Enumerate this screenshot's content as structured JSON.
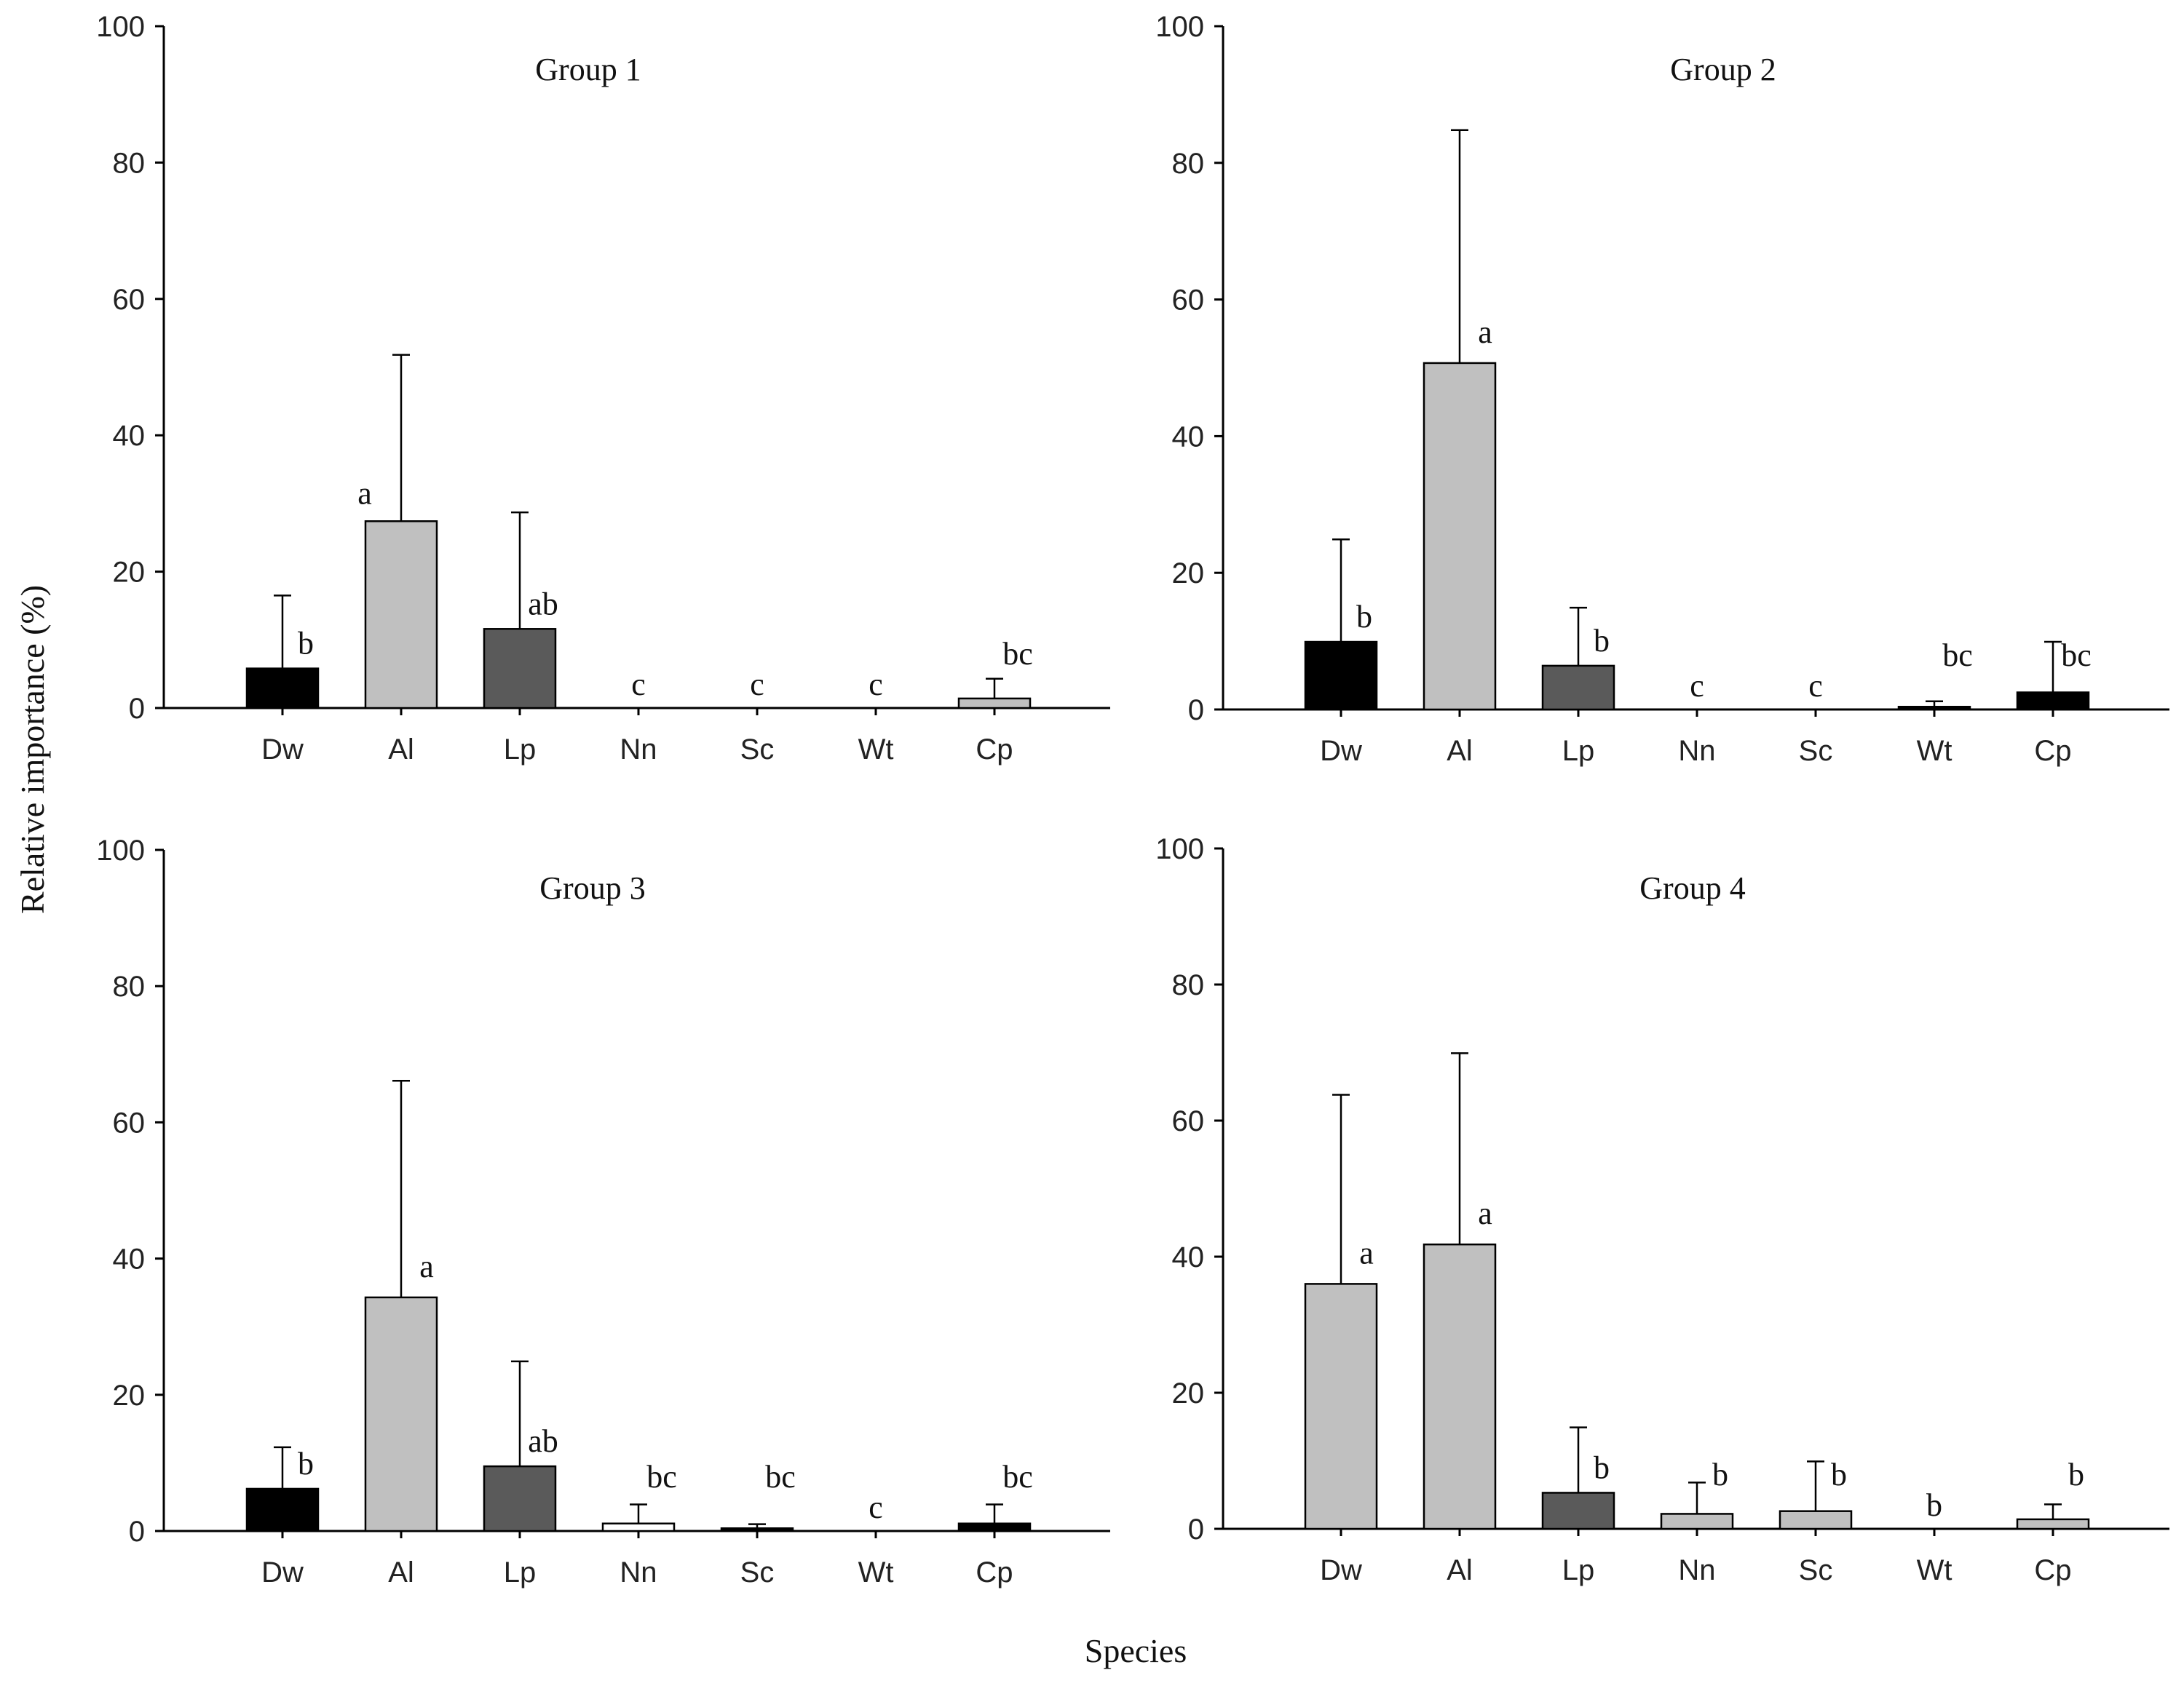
{
  "figure": {
    "ylabel": "Relative importance (%)",
    "xlabel": "Species"
  },
  "colors": {
    "black": "#000000",
    "light_gray": "#c0c0c0",
    "dark_gray": "#5a5a5a",
    "white": "#ffffff"
  },
  "chart_data": [
    {
      "type": "bar",
      "title": "Group 1",
      "categories": [
        "Dw",
        "Al",
        "Lp",
        "Nn",
        "Sc",
        "Wt",
        "Cp"
      ],
      "values": [
        5.8,
        27.4,
        11.6,
        0,
        0,
        0,
        1.4
      ],
      "error_upper": [
        16.5,
        51.8,
        28.7,
        0,
        0,
        0,
        4.3
      ],
      "letters": [
        "b",
        "a",
        "ab",
        "c",
        "c",
        "c",
        "bc"
      ],
      "fills": [
        "black",
        "light_gray",
        "dark_gray",
        "white",
        "white",
        "white",
        "light_gray"
      ],
      "ylim": [
        0,
        100
      ],
      "yticks": [
        0,
        20,
        40,
        60,
        80,
        100
      ]
    },
    {
      "type": "bar",
      "title": "Group 2",
      "categories": [
        "Dw",
        "Al",
        "Lp",
        "Nn",
        "Sc",
        "Wt",
        "Cp"
      ],
      "values": [
        9.9,
        50.7,
        6.4,
        0,
        0,
        0.4,
        2.5
      ],
      "error_upper": [
        24.9,
        84.8,
        14.9,
        0,
        0,
        1.2,
        9.9
      ],
      "letters": [
        "b",
        "a",
        "b",
        "c",
        "c",
        "bc",
        "bc"
      ],
      "fills": [
        "black",
        "light_gray",
        "dark_gray",
        "white",
        "white",
        "black",
        "black"
      ],
      "ylim": [
        0,
        100
      ],
      "yticks": [
        0,
        20,
        40,
        60,
        80,
        100
      ]
    },
    {
      "type": "bar",
      "title": "Group 3",
      "categories": [
        "Dw",
        "Al",
        "Lp",
        "Nn",
        "Sc",
        "Wt",
        "Cp"
      ],
      "values": [
        6.2,
        34.3,
        9.5,
        1.1,
        0.4,
        0,
        1.1
      ],
      "error_upper": [
        12.3,
        66.1,
        24.9,
        3.9,
        1.0,
        0,
        3.9
      ],
      "letters": [
        "b",
        "a",
        "ab",
        "bc",
        "bc",
        "c",
        "bc"
      ],
      "fills": [
        "black",
        "light_gray",
        "dark_gray",
        "white",
        "black",
        "white",
        "black"
      ],
      "ylim": [
        0,
        100
      ],
      "yticks": [
        0,
        20,
        40,
        60,
        80,
        100
      ]
    },
    {
      "type": "bar",
      "title": "Group 4",
      "categories": [
        "Dw",
        "Al",
        "Lp",
        "Nn",
        "Sc",
        "Wt",
        "Cp"
      ],
      "values": [
        36.0,
        41.8,
        5.3,
        2.2,
        2.6,
        0,
        1.4
      ],
      "error_upper": [
        63.8,
        69.9,
        14.9,
        6.8,
        9.9,
        0,
        3.6
      ],
      "letters": [
        "a",
        "a",
        "b",
        "b",
        "b",
        "b",
        "b"
      ],
      "fills": [
        "light_gray",
        "light_gray",
        "dark_gray",
        "light_gray",
        "light_gray",
        "white",
        "light_gray"
      ],
      "ylim": [
        0,
        100
      ],
      "yticks": [
        0,
        20,
        40,
        60,
        80,
        100
      ]
    }
  ]
}
